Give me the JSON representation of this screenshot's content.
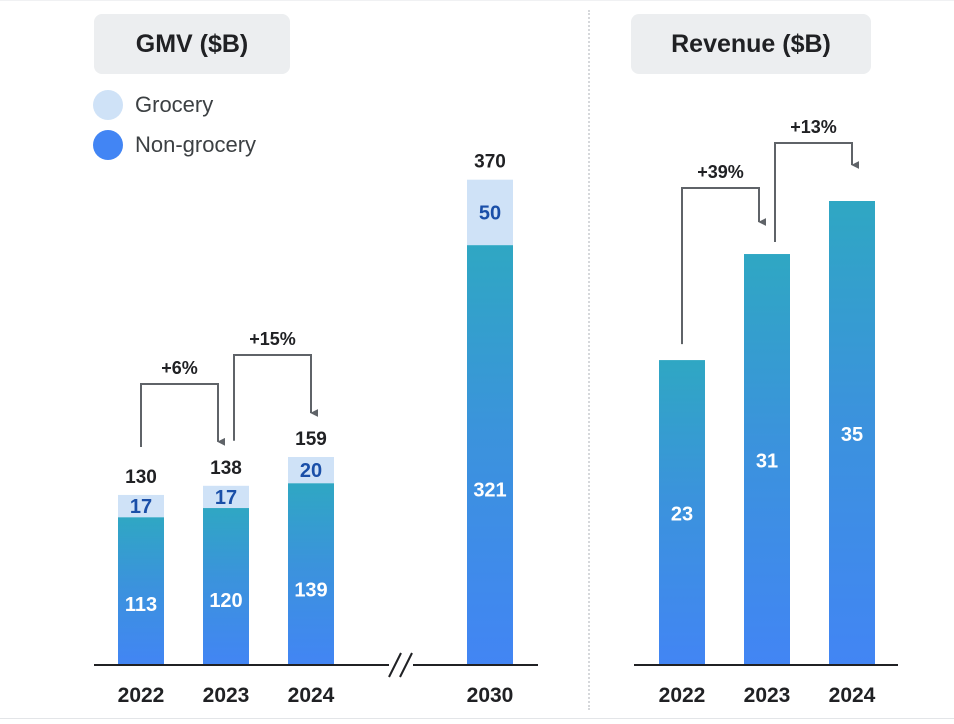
{
  "colors": {
    "grocery": "#cfe2f7",
    "non_grocery_top": "#2fa7c3",
    "non_grocery_bottom": "#4285f4",
    "grocery_label": "#1a4fa8",
    "axis": "#202124",
    "arrow": "#5f6368"
  },
  "chart_data": [
    {
      "type": "bar",
      "stacked": true,
      "title": "GMV ($B)",
      "categories": [
        "2022",
        "2023",
        "2024",
        "2030"
      ],
      "axis_break_between": [
        "2024",
        "2030"
      ],
      "legend": [
        "Grocery",
        "Non-grocery"
      ],
      "series": [
        {
          "name": "Non-grocery",
          "values": [
            113,
            120,
            139,
            321
          ]
        },
        {
          "name": "Grocery",
          "values": [
            17,
            17,
            20,
            50
          ]
        }
      ],
      "totals": [
        130,
        138,
        159,
        370
      ],
      "growth_annotations": [
        {
          "from": "2022",
          "to": "2023",
          "label": "+6%"
        },
        {
          "from": "2023",
          "to": "2024",
          "label": "+15%"
        }
      ],
      "ylim": [
        0,
        370
      ]
    },
    {
      "type": "bar",
      "title": "Revenue ($B)",
      "categories": [
        "2022",
        "2023",
        "2024"
      ],
      "values": [
        23,
        31,
        35
      ],
      "growth_annotations": [
        {
          "from": "2022",
          "to": "2023",
          "label": "+39%"
        },
        {
          "from": "2023",
          "to": "2024",
          "label": "+13%"
        }
      ],
      "ylim": [
        0,
        35
      ]
    }
  ]
}
